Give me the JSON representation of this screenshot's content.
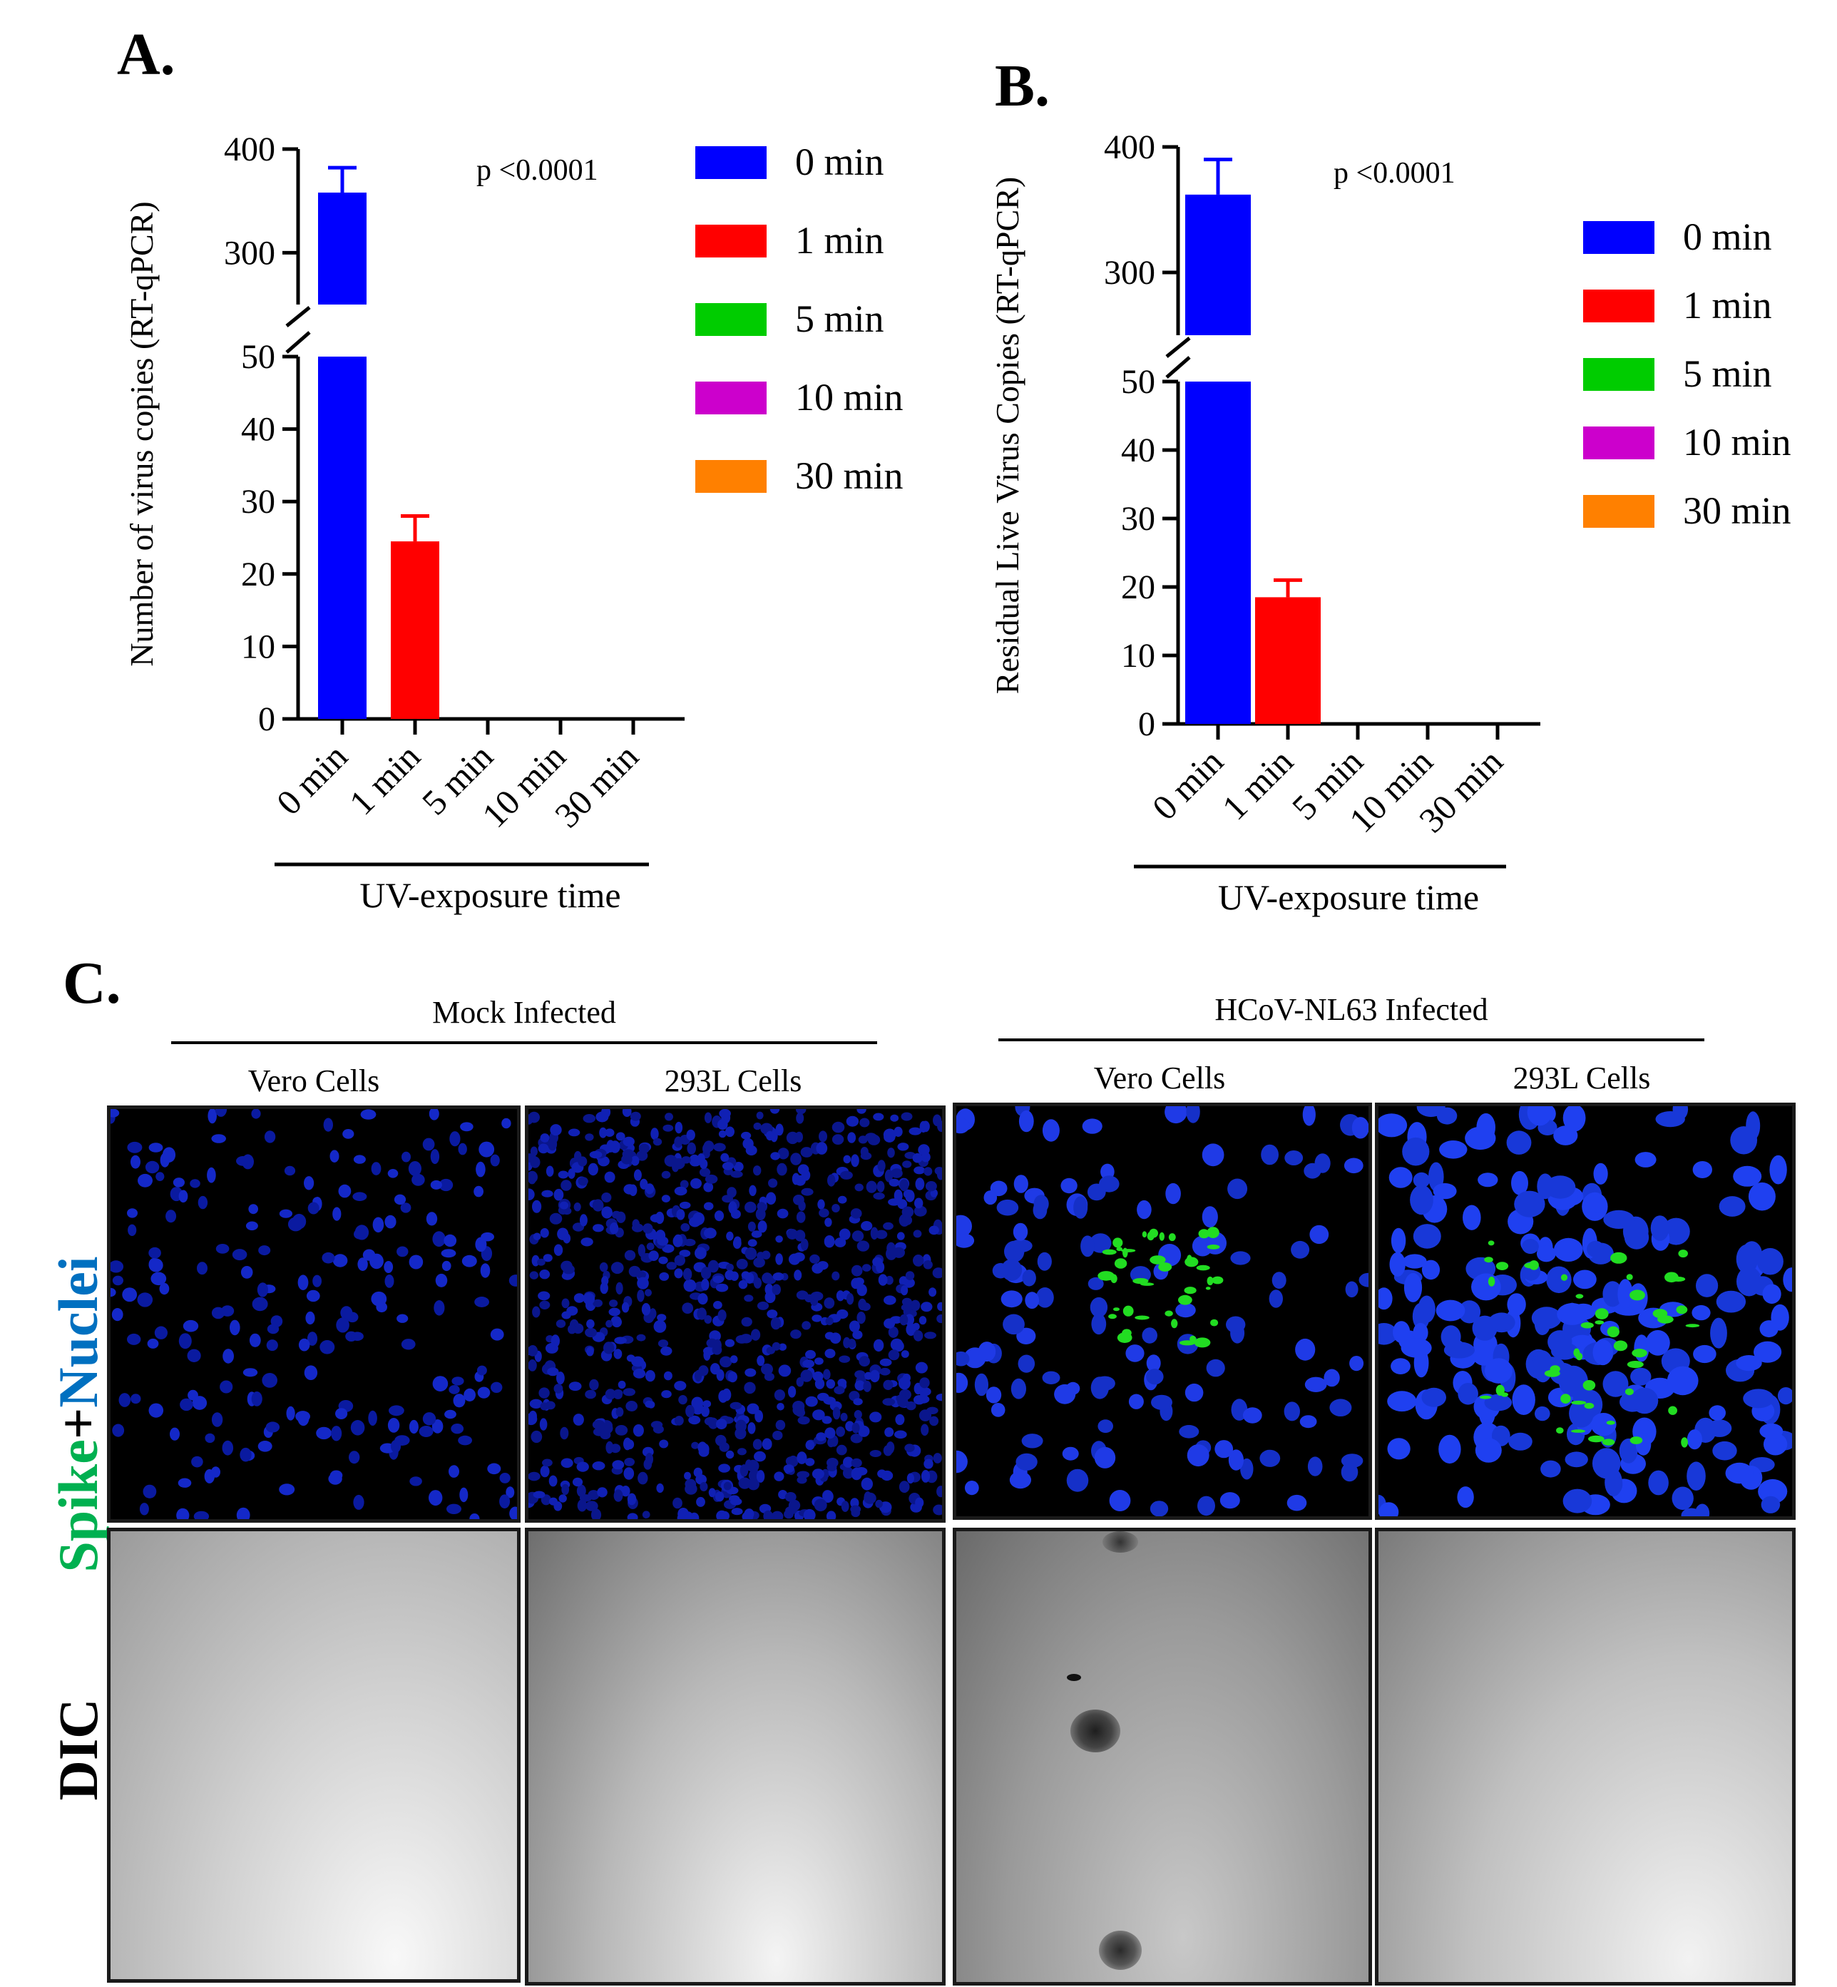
{
  "chart_data": [
    {
      "panel": "A.",
      "type": "bar",
      "categories": [
        "0 min",
        "1 min",
        "5 min",
        "10 min",
        "30 min"
      ],
      "values": [
        358,
        24.5,
        0,
        0,
        0
      ],
      "errors": [
        24,
        3.5,
        0,
        0,
        0
      ],
      "colors": [
        "#0000ff",
        "#ff0000",
        "#00cc00",
        "#cc00cc",
        "#ff8000"
      ],
      "ylabel": "Number of virus copies (RT-qPCR)",
      "xlabel": "UV-exposure time",
      "annotation": "p <0.0001",
      "y_axis": "broken",
      "ylim_lower": [
        0,
        50
      ],
      "ylim_upper": [
        250,
        400
      ],
      "yticks_lower": [
        0,
        10,
        20,
        30,
        40,
        50
      ],
      "yticks_upper": [
        300,
        400
      ],
      "legend": [
        "0 min",
        "1 min",
        "5 min",
        "10 min",
        "30 min"
      ],
      "legend_position": "right"
    },
    {
      "panel": "B.",
      "type": "bar",
      "categories": [
        "0 min",
        "1 min",
        "5 min",
        "10 min",
        "30 min"
      ],
      "values": [
        362,
        18.5,
        0,
        0,
        0
      ],
      "errors": [
        28,
        2.5,
        0,
        0,
        0
      ],
      "colors": [
        "#0000ff",
        "#ff0000",
        "#00cc00",
        "#cc00cc",
        "#ff8000"
      ],
      "ylabel": "Residual Live Virus Copies (RT-qPCR)",
      "xlabel": "UV-exposure time",
      "annotation": "p <0.0001",
      "y_axis": "broken",
      "ylim_lower": [
        0,
        50
      ],
      "ylim_upper": [
        250,
        400
      ],
      "yticks_lower": [
        0,
        10,
        20,
        30,
        40,
        50
      ],
      "yticks_upper": [
        300,
        400
      ],
      "legend": [
        "0 min",
        "1 min",
        "5 min",
        "10 min",
        "30 min"
      ],
      "legend_position": "right"
    }
  ],
  "panel_c": {
    "letter": "C.",
    "groups": [
      "Mock Infected",
      "HCoV-NL63 Infected"
    ],
    "columns": [
      "Vero Cells",
      "293L Cells",
      "Vero Cells",
      "293L Cells"
    ],
    "row_labels": {
      "fluor_part1": "Spike",
      "fluor_plus": "+",
      "fluor_part2": "Nuclei",
      "dic": "DIC"
    },
    "colors": {
      "spike": "#00b050",
      "nuclei": "#0070c0"
    }
  }
}
